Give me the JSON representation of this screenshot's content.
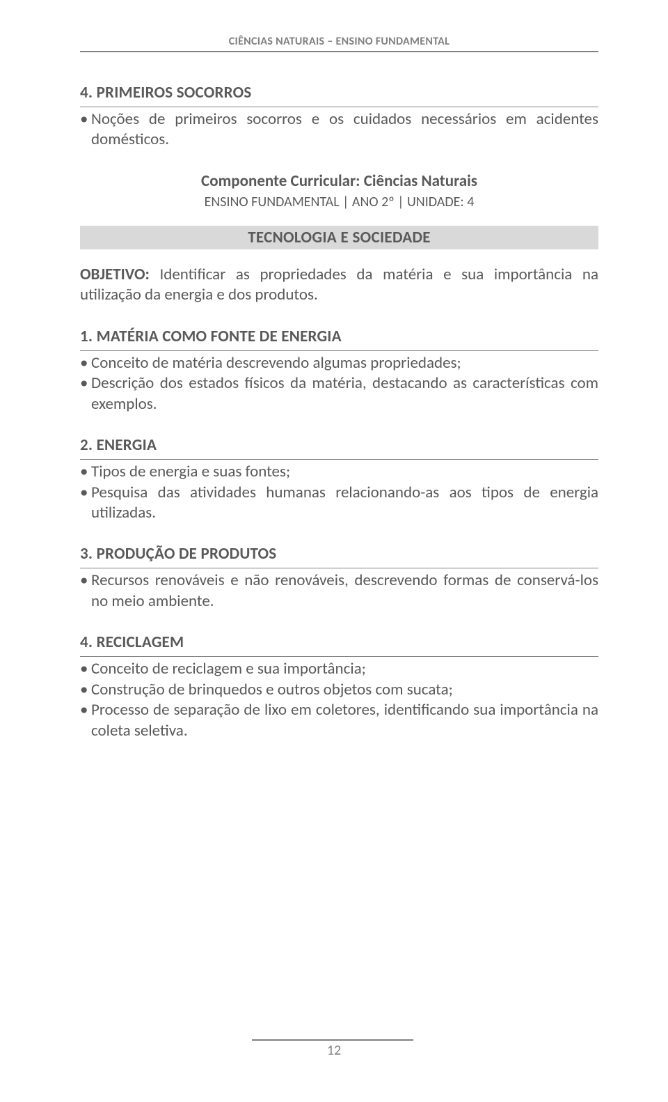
{
  "header": {
    "text": "CIÊNCIAS NATURAIS – ENSINO FUNDAMENTAL"
  },
  "section4_top": {
    "heading": "4. PRIMEIROS SOCORROS",
    "items": [
      "Noções de primeiros socorros e os cuidados necessários em acidentes domésticos."
    ]
  },
  "component": {
    "title": "Componente Curricular: Ciências Naturais",
    "sub": "ENSINO FUNDAMENTAL  |  ANO 2º  |  UNIDADE: 4"
  },
  "banner": "TECNOLOGIA E SOCIEDADE",
  "objective": {
    "label": "OBJETIVO:",
    "text": " Identificar as propriedades da matéria e sua importância na utilização da energia e dos produtos."
  },
  "sec1": {
    "heading": "1. MATÉRIA COMO FONTE DE ENERGIA",
    "items": [
      "Conceito de matéria descrevendo algumas propriedades;",
      "Descrição dos estados físicos da matéria, destacando as características com exemplos."
    ]
  },
  "sec2": {
    "heading": "2. ENERGIA",
    "items": [
      "Tipos de energia e suas fontes;",
      "Pesquisa das atividades humanas relacionando-as aos tipos de energia utilizadas."
    ]
  },
  "sec3": {
    "heading": "3. PRODUÇÃO DE PRODUTOS",
    "items": [
      "Recursos renováveis e não renováveis, descrevendo formas de conservá-los no meio ambiente."
    ]
  },
  "sec4": {
    "heading": "4. RECICLAGEM",
    "items": [
      "Conceito de reciclagem e sua importância;",
      "Construção de brinquedos e outros objetos com sucata;",
      "Processo de separação de lixo em coletores, identificando sua importância na coleta seletiva."
    ]
  },
  "page_number": "12"
}
